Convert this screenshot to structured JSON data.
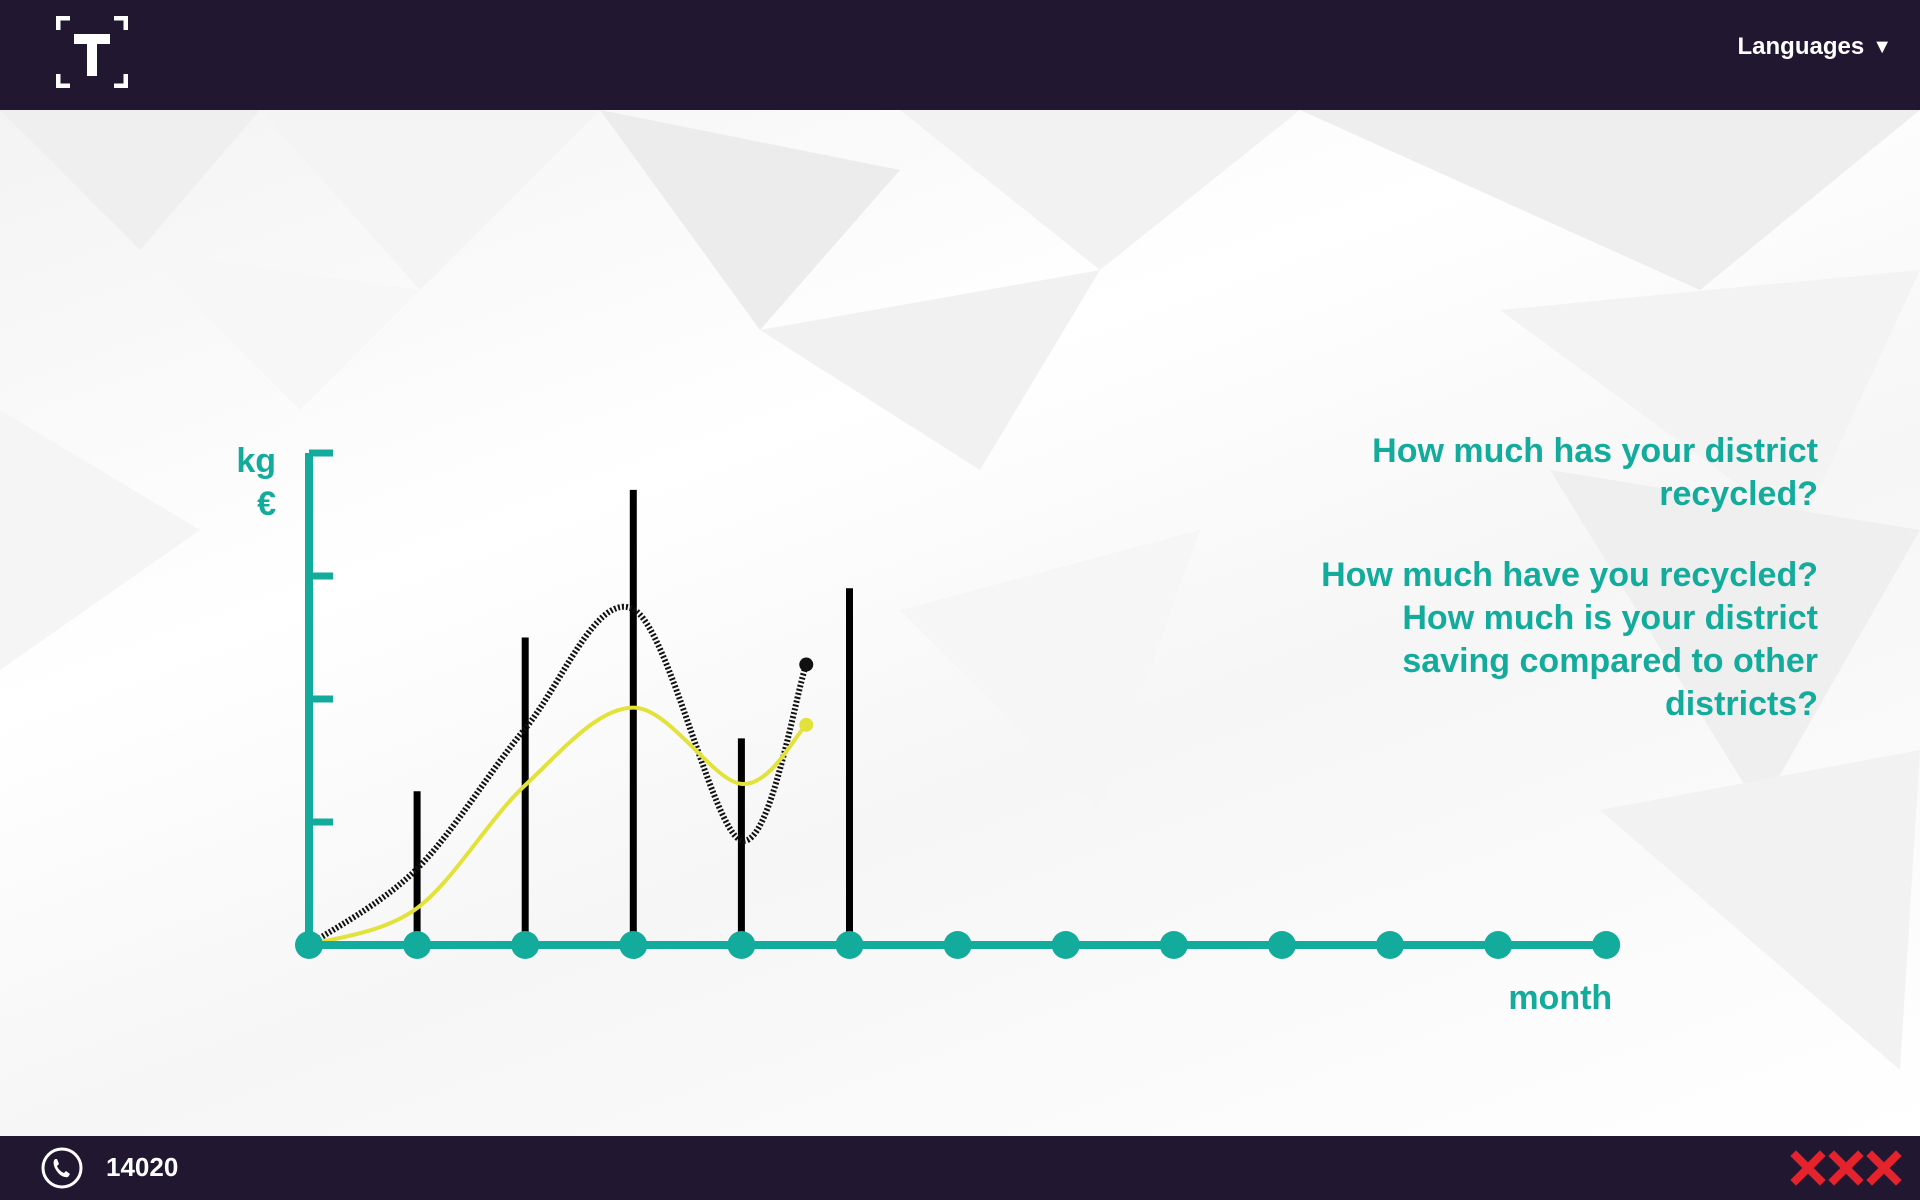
{
  "header": {
    "logo_icon": "t-bracket-logo-icon",
    "languages_label": "Languages",
    "languages_icon": "triangle-down-icon"
  },
  "questions": [
    "How much has your district recycled?",
    "How much have you recycled?",
    "How much is your district saving compared to other districts?"
  ],
  "footer": {
    "phone_icon": "phone-icon",
    "phone_number": "14020",
    "brand_icon": "three-x-icon"
  },
  "colors": {
    "header_bg": "#221730",
    "accent": "#13ab9b",
    "bars": "#000000",
    "yellow_line": "#e2e23a",
    "brand_red": "#e4232d"
  },
  "chart_data": {
    "type": "bar",
    "title": "",
    "ylabel_lines": [
      "kg",
      "€"
    ],
    "xlabel": "month",
    "x": [
      0,
      1,
      2,
      3,
      4,
      5,
      6,
      7,
      8,
      9,
      10,
      11,
      12
    ],
    "xlim": [
      0,
      12
    ],
    "ylim": [
      0,
      4
    ],
    "y_ticks": [
      1,
      2,
      3,
      4
    ],
    "bars": [
      {
        "x": 1,
        "value": 1.25
      },
      {
        "x": 2,
        "value": 2.5
      },
      {
        "x": 3,
        "value": 3.7
      },
      {
        "x": 4,
        "value": 1.68
      },
      {
        "x": 5,
        "value": 2.9
      }
    ],
    "series": [
      {
        "style": "dotted-black",
        "x": [
          0,
          1,
          2,
          3,
          4,
          4.6
        ],
        "values": [
          0.0,
          0.62,
          1.76,
          2.73,
          0.85,
          2.28
        ]
      },
      {
        "style": "solid-yellow",
        "x": [
          0,
          1,
          2,
          3,
          4,
          4.6
        ],
        "values": [
          0.0,
          0.3,
          1.3,
          1.93,
          1.31,
          1.79
        ]
      }
    ],
    "grid": false,
    "legend": "none"
  }
}
